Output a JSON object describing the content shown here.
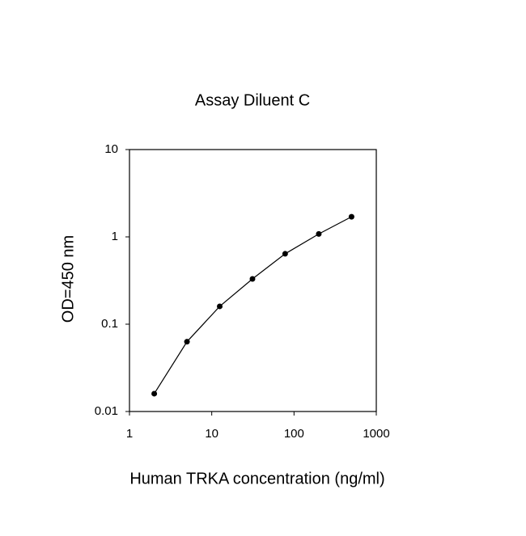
{
  "chart_data": {
    "type": "line",
    "title": "Assay Diluent C",
    "xlabel": "Human TRKA concentration (ng/ml)",
    "ylabel": "OD=450 nm",
    "x": [
      2,
      5,
      12.5,
      31.25,
      78,
      200,
      500
    ],
    "series": [
      {
        "color": "#000000",
        "values": [
          0.016,
          0.063,
          0.16,
          0.33,
          0.64,
          1.08,
          1.7
        ]
      }
    ],
    "xscale": "log",
    "yscale": "log",
    "xlim": [
      1,
      1000
    ],
    "ylim": [
      0.01,
      10
    ],
    "xticks": [
      1,
      10,
      100,
      1000
    ],
    "yticks": [
      0.01,
      0.1,
      1,
      10
    ],
    "grid": false
  }
}
